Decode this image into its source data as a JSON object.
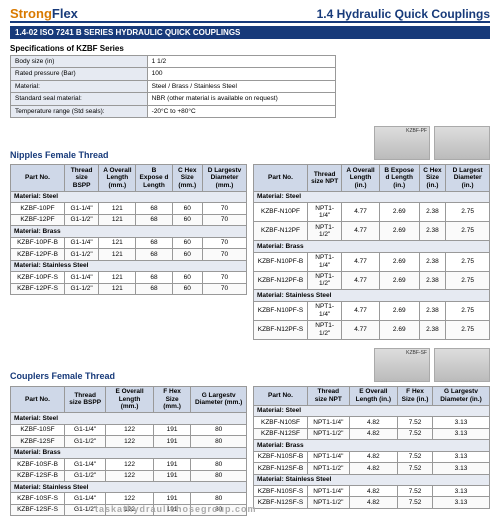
{
  "brand": {
    "p1": "Strong",
    "p2": "Flex"
  },
  "header_title": "1.4 Hydraulic Quick Couplings",
  "band": "1.4-02  ISO 7241 B SERIES HYDRAULIC QUICK COUPLINGS",
  "spec_title": "Specifications of KZBF Series",
  "specs": [
    [
      "Body size (in)",
      "1 1/2"
    ],
    [
      "Rated pressure (Bar)",
      "100"
    ],
    [
      "Material:",
      "Steel / Brass / Stainless Steel"
    ],
    [
      "Standard seal material:",
      "NBR (other material is available on request)"
    ],
    [
      "Temperature range (Std seals):",
      "-20°C to +80°C"
    ]
  ],
  "nipples": {
    "title": "Nipples\nFemale Thread",
    "thumbs": [
      "KZBF-PF",
      ""
    ],
    "left": {
      "headers": [
        "Part No.",
        "Thread size BSPP",
        "A Overall Length (mm.)",
        "B Expose d Length",
        "C Hex Size (mm.)",
        "D Largestv Diameter (mm.)"
      ],
      "groups": [
        {
          "mat": "Material: Steel",
          "rows": [
            [
              "KZBF-10PF",
              "G1-1/4\"",
              "121",
              "68",
              "60",
              "70"
            ],
            [
              "KZBF-12PF",
              "G1-1/2\"",
              "121",
              "68",
              "60",
              "70"
            ]
          ]
        },
        {
          "mat": "Material: Brass",
          "rows": [
            [
              "KZBF-10PF-B",
              "G1-1/4\"",
              "121",
              "68",
              "60",
              "70"
            ],
            [
              "KZBF-12PF-B",
              "G1-1/2\"",
              "121",
              "68",
              "60",
              "70"
            ]
          ]
        },
        {
          "mat": "Material: Stainless Steel",
          "rows": [
            [
              "KZBF-10PF-S",
              "G1-1/4\"",
              "121",
              "68",
              "60",
              "70"
            ],
            [
              "KZBF-12PF-S",
              "G1-1/2\"",
              "121",
              "68",
              "60",
              "70"
            ]
          ]
        }
      ]
    },
    "right": {
      "headers": [
        "Part No.",
        "Thread size NPT",
        "A Overall Length (in.)",
        "B Expose d Length (in.)",
        "C Hex Size (in.)",
        "D Largest Diameter (in.)"
      ],
      "groups": [
        {
          "mat": "Material: Steel",
          "rows": [
            [
              "KZBF-N10PF",
              "NPT1-1/4\"",
              "4.77",
              "2.69",
              "2.38",
              "2.75"
            ],
            [
              "KZBF-N12PF",
              "NPT1-1/2\"",
              "4.77",
              "2.69",
              "2.38",
              "2.75"
            ]
          ]
        },
        {
          "mat": "Material: Brass",
          "rows": [
            [
              "KZBF-N10PF-B",
              "NPT1-1/4\"",
              "4.77",
              "2.69",
              "2.38",
              "2.75"
            ],
            [
              "KZBF-N12PF-B",
              "NPT1-1/2\"",
              "4.77",
              "2.69",
              "2.38",
              "2.75"
            ]
          ]
        },
        {
          "mat": "Material: Stainless Steel",
          "rows": [
            [
              "KZBF-N10PF-S",
              "NPT1-1/4\"",
              "4.77",
              "2.69",
              "2.38",
              "2.75"
            ],
            [
              "KZBF-N12PF-S",
              "NPT1-1/2\"",
              "4.77",
              "2.69",
              "2.38",
              "2.75"
            ]
          ]
        }
      ]
    }
  },
  "couplers": {
    "title": "Couplers\nFemale Thread",
    "thumbs": [
      "KZBF-SF",
      ""
    ],
    "left": {
      "headers": [
        "Part No.",
        "Thread size BSPP",
        "E Overall Length (mm.)",
        "F Hex Size (mm.)",
        "G Largestv Diameter (mm.)"
      ],
      "groups": [
        {
          "mat": "Material: Steel",
          "rows": [
            [
              "KZBF-10SF",
              "G1-1/4\"",
              "122",
              "191",
              "80"
            ],
            [
              "KZBF-12SF",
              "G1-1/2\"",
              "122",
              "191",
              "80"
            ]
          ]
        },
        {
          "mat": "Material: Brass",
          "rows": [
            [
              "KZBF-10SF-B",
              "G1-1/4\"",
              "122",
              "191",
              "80"
            ],
            [
              "KZBF-12SF-B",
              "G1-1/2\"",
              "122",
              "191",
              "80"
            ]
          ]
        },
        {
          "mat": "Material: Stainless Steel",
          "rows": [
            [
              "KZBF-10SF-S",
              "G1-1/4\"",
              "122",
              "191",
              "80"
            ],
            [
              "KZBF-12SF-S",
              "G1-1/2\"",
              "122",
              "191",
              "80"
            ]
          ]
        }
      ]
    },
    "right": {
      "headers": [
        "Part No.",
        "Thread size NPT",
        "E Overall Length (in.)",
        "F Hex Size (in.)",
        "G Largestv Diameter (in.)"
      ],
      "groups": [
        {
          "mat": "Material: Steel",
          "rows": [
            [
              "KZBF-N10SF",
              "NPT1-1/4\"",
              "4.82",
              "7.52",
              "3.13"
            ],
            [
              "KZBF-N12SF",
              "NPT1-1/2\"",
              "4.82",
              "7.52",
              "3.13"
            ]
          ]
        },
        {
          "mat": "Material: Brass",
          "rows": [
            [
              "KZBF-N10SF-B",
              "NPT1-1/4\"",
              "4.82",
              "7.52",
              "3.13"
            ],
            [
              "KZBF-N12SF-B",
              "NPT1-1/2\"",
              "4.82",
              "7.52",
              "3.13"
            ]
          ]
        },
        {
          "mat": "Material: Stainless Steel",
          "rows": [
            [
              "KZBF-N10SF-S",
              "NPT1-1/4\"",
              "4.82",
              "7.52",
              "3.13"
            ],
            [
              "KZBF-N12SF-S",
              "NPT1-1/2\"",
              "4.82",
              "7.52",
              "3.13"
            ]
          ]
        }
      ]
    }
  },
  "watermark": "taskathydraulichosegroup.com"
}
